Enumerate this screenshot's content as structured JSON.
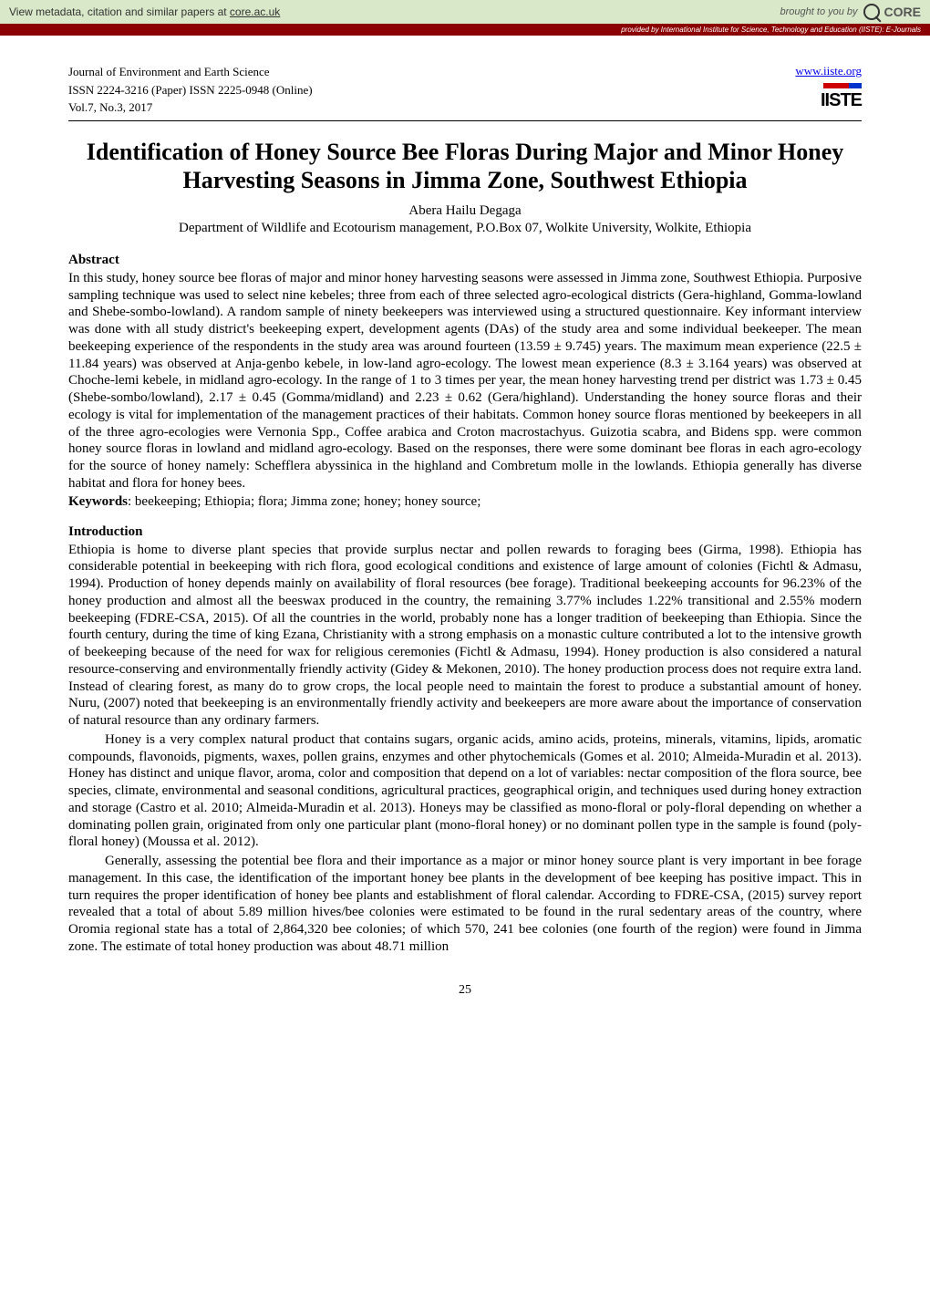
{
  "banner": {
    "left_text": "View metadata, citation and similar papers at ",
    "left_link": "core.ac.uk",
    "right_prefix": "brought to you by ",
    "right_brand": "CORE",
    "sub_text": "provided by International Institute for Science, Technology and Education (IISTE): E-Journals"
  },
  "header": {
    "journal": "Journal of Environment and Earth Science",
    "issn": "ISSN 2224-3216 (Paper) ISSN 2225-0948 (Online)",
    "volume": "Vol.7, No.3, 2017",
    "site_link": "www.iiste.org",
    "logo_text": "IISTE"
  },
  "paper": {
    "title": "Identification of Honey Source Bee Floras During Major and Minor Honey Harvesting Seasons in Jimma Zone, Southwest Ethiopia",
    "author": "Abera Hailu Degaga",
    "affiliation": "Department of Wildlife and Ecotourism management, P.O.Box 07, Wolkite University, Wolkite, Ethiopia"
  },
  "sections": {
    "abstract_heading": "Abstract",
    "abstract_body": "In this study, honey source bee floras of major and minor honey harvesting seasons were assessed in Jimma zone, Southwest Ethiopia.  Purposive sampling technique was used to select nine kebeles; three from each of three selected agro-ecological districts (Gera-highland, Gomma-lowland and Shebe-sombo-lowland). A random sample of ninety beekeepers was interviewed using a structured questionnaire.  Key informant interview was done with all study district's beekeeping expert, development agents (DAs) of the study area and some individual beekeeper. The mean beekeeping experience of the respondents in the study area was around fourteen (13.59 ± 9.745) years. The maximum mean experience (22.5 ± 11.84 years) was observed at Anja-genbo kebele, in low-land agro-ecology. The lowest mean experience (8.3 ± 3.164 years) was observed at Choche-lemi kebele, in midland agro-ecology. In the range of 1 to 3 times per year, the mean honey harvesting trend per district was 1.73 ± 0.45 (Shebe-sombo/lowland), 2.17 ± 0.45 (Gomma/midland) and 2.23 ± 0.62 (Gera/highland). Understanding the honey source floras and their ecology is vital for implementation of the management practices of their habitats. Common honey source floras mentioned by beekeepers in all of the three agro-ecologies were Vernonia Spp., Coffee arabica and Croton macrostachyus. Guizotia scabra, and Bidens spp. were common honey source floras in lowland and midland agro-ecology. Based on the responses, there were some dominant bee floras in each agro-ecology for the source of honey namely: Schefflera abyssinica in the highland and Combretum molle in the lowlands. Ethiopia generally has diverse habitat and flora for honey bees.",
    "keywords_label": "Keywords",
    "keywords_text": ": beekeeping; Ethiopia; flora; Jimma zone; honey; honey source;",
    "intro_heading": "Introduction",
    "intro_p1": "Ethiopia is home to diverse plant species that provide surplus nectar and pollen rewards to foraging bees (Girma, 1998).  Ethiopia has considerable potential in beekeeping with rich flora, good ecological conditions and existence of large amount of colonies (Fichtl & Admasu, 1994). Production of honey depends mainly on availability of floral resources (bee forage). Traditional beekeeping accounts for 96.23% of the honey production and almost all the beeswax produced in the country, the remaining 3.77% includes 1.22% transitional and 2.55% modern beekeeping (FDRE-CSA, 2015). Of all the countries in the world, probably none has a longer tradition of beekeeping than Ethiopia. Since the fourth century, during the time of king Ezana, Christianity with a strong emphasis on a monastic culture contributed a lot to the intensive growth of beekeeping because of the need for wax for religious ceremonies (Fichtl & Admasu, 1994). Honey production is also considered a natural resource-conserving and environmentally friendly activity (Gidey & Mekonen, 2010). The honey production process does not require extra land. Instead of clearing forest, as many do to grow crops, the local people need to maintain the forest to produce a substantial amount of honey. Nuru, (2007) noted that beekeeping is an environmentally friendly activity and beekeepers are more aware about the importance of conservation of natural resource than any ordinary farmers.",
    "intro_p2": "Honey is a very complex natural product that contains sugars, organic acids, amino acids, proteins, minerals, vitamins, lipids, aromatic compounds, flavonoids, pigments, waxes, pollen grains, enzymes and other phytochemicals (Gomes et al. 2010; Almeida-Muradin et al. 2013). Honey has distinct and unique flavor, aroma, color and composition that depend on a lot of variables: nectar composition of the flora source, bee species, climate, environmental and seasonal conditions, agricultural practices, geographical origin, and techniques used during honey extraction and storage (Castro et al. 2010; Almeida-Muradin et al. 2013). Honeys may be classified as mono-floral or poly-floral depending on whether a dominating pollen grain, originated from only one particular plant (mono-floral honey) or no dominant pollen type in the sample is found (poly-floral honey) (Moussa et al. 2012).",
    "intro_p3": "Generally, assessing the potential bee flora and their importance as a major or minor honey source plant is very important in bee forage management. In this case, the identification of the important honey bee plants in the development of bee keeping has positive impact. This in turn requires the proper identification of honey bee plants and establishment of floral calendar. According to FDRE-CSA, (2015) survey report revealed that a total of about 5.89 million hives/bee colonies were estimated to be found in the rural sedentary areas of the country, where Oromia regional state has a total of 2,864,320 bee colonies; of which 570, 241 bee colonies (one fourth of the region) were found in Jimma zone. The estimate of total honey production was about 48.71 million"
  },
  "page_number": "25",
  "colors": {
    "banner_bg": "#d9e8c8",
    "sub_banner_bg": "#8b0000",
    "link_color": "#0000ee"
  }
}
